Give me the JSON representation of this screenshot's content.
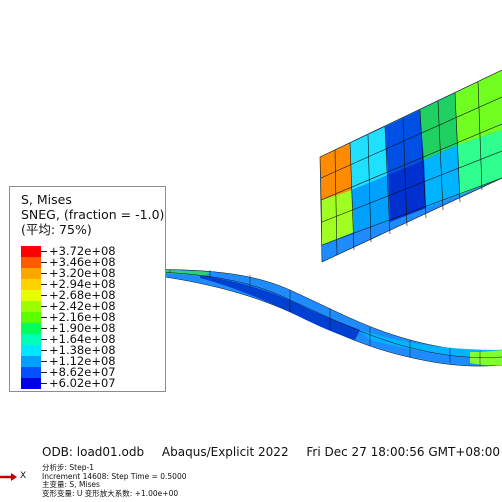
{
  "legend": {
    "title": "S, Mises",
    "subtitle": "SNEG, (fraction = -1.0)",
    "avg": "(平均: 75%)",
    "entries": [
      {
        "value": "+3.72e+08",
        "color": "#ff0000"
      },
      {
        "value": "+3.46e+08",
        "color": "#ff5a00"
      },
      {
        "value": "+3.20e+08",
        "color": "#ffa500"
      },
      {
        "value": "+2.94e+08",
        "color": "#ffd200"
      },
      {
        "value": "+2.68e+08",
        "color": "#e6ff00"
      },
      {
        "value": "+2.42e+08",
        "color": "#9bff00"
      },
      {
        "value": "+2.16e+08",
        "color": "#5aff00"
      },
      {
        "value": "+1.90e+08",
        "color": "#00ff5a"
      },
      {
        "value": "+1.64e+08",
        "color": "#00ffb4"
      },
      {
        "value": "+1.38e+08",
        "color": "#00e6ff"
      },
      {
        "value": "+1.12e+08",
        "color": "#00a0ff"
      },
      {
        "value": "+8.62e+07",
        "color": "#0050ff"
      },
      {
        "value": "+6.02e+07",
        "color": "#0000e6"
      }
    ]
  },
  "info": {
    "odb": "ODB: load01.odb",
    "solver": "Abaqus/Explicit 2022",
    "date": "Fri Dec 27 18:00:56 GMT+08:00 202"
  },
  "status": {
    "step": "分析步: Step-1",
    "increment": "Increment     14608: Step Time =    0.5000",
    "primary": "主变量: S, Mises",
    "deformed": "变形变量: U   变形放大系数: +1.00e+00"
  },
  "triad": {
    "x_label": "X"
  }
}
